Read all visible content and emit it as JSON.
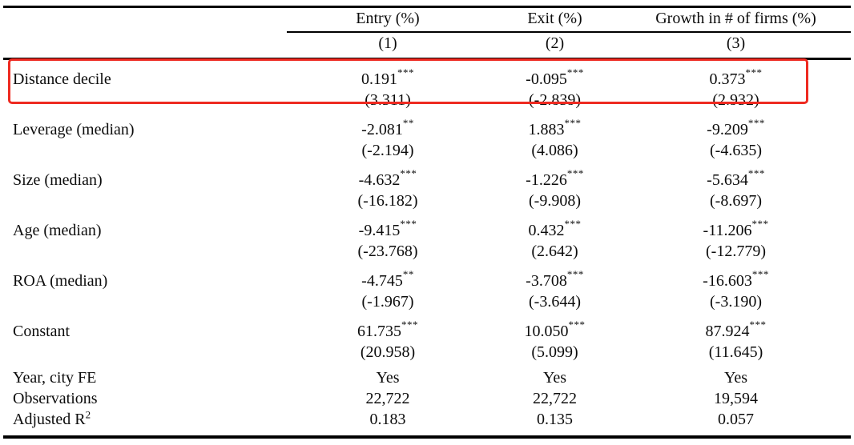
{
  "table": {
    "headers": [
      "Entry (%)",
      "Exit (%)",
      "Growth in # of firms (%)"
    ],
    "model_numbers": [
      "(1)",
      "(2)",
      "(3)"
    ],
    "rows": [
      {
        "label": "Distance decile",
        "coefs": [
          "0.191",
          "-0.095",
          "0.373"
        ],
        "stars": [
          "***",
          "***",
          "***"
        ],
        "tstats": [
          "(3.311)",
          "(-2.839)",
          "(2.932)"
        ],
        "highlighted": true
      },
      {
        "label": "Leverage (median)",
        "coefs": [
          "-2.081",
          "1.883",
          "-9.209"
        ],
        "stars": [
          "**",
          "***",
          "***"
        ],
        "tstats": [
          "(-2.194)",
          "(4.086)",
          "(-4.635)"
        ],
        "highlighted": false
      },
      {
        "label": "Size (median)",
        "coefs": [
          "-4.632",
          "-1.226",
          "-5.634"
        ],
        "stars": [
          "***",
          "***",
          "***"
        ],
        "tstats": [
          "(-16.182)",
          "(-9.908)",
          "(-8.697)"
        ],
        "highlighted": false
      },
      {
        "label": "Age (median)",
        "coefs": [
          "-9.415",
          "0.432",
          "-11.206"
        ],
        "stars": [
          "***",
          "***",
          "***"
        ],
        "tstats": [
          "(-23.768)",
          "(2.642)",
          "(-12.779)"
        ],
        "highlighted": false
      },
      {
        "label": "ROA (median)",
        "coefs": [
          "-4.745",
          "-3.708",
          "-16.603"
        ],
        "stars": [
          "**",
          "***",
          "***"
        ],
        "tstats": [
          "(-1.967)",
          "(-3.644)",
          "(-3.190)"
        ],
        "highlighted": false
      },
      {
        "label": "Constant",
        "coefs": [
          "61.735",
          "10.050",
          "87.924"
        ],
        "stars": [
          "***",
          "***",
          "***"
        ],
        "tstats": [
          "(20.958)",
          "(5.099)",
          "(11.645)"
        ],
        "highlighted": false
      }
    ],
    "summary_rows": [
      {
        "label": "Year, city FE",
        "values": [
          "Yes",
          "Yes",
          "Yes"
        ]
      },
      {
        "label": "Observations",
        "values": [
          "22,722",
          "22,722",
          "19,594"
        ]
      },
      {
        "label": "Adjusted R",
        "label_sup": "2",
        "values": [
          "0.183",
          "0.135",
          "0.057"
        ]
      }
    ]
  },
  "annotation": {
    "highlight_color": "#ee2a21"
  }
}
